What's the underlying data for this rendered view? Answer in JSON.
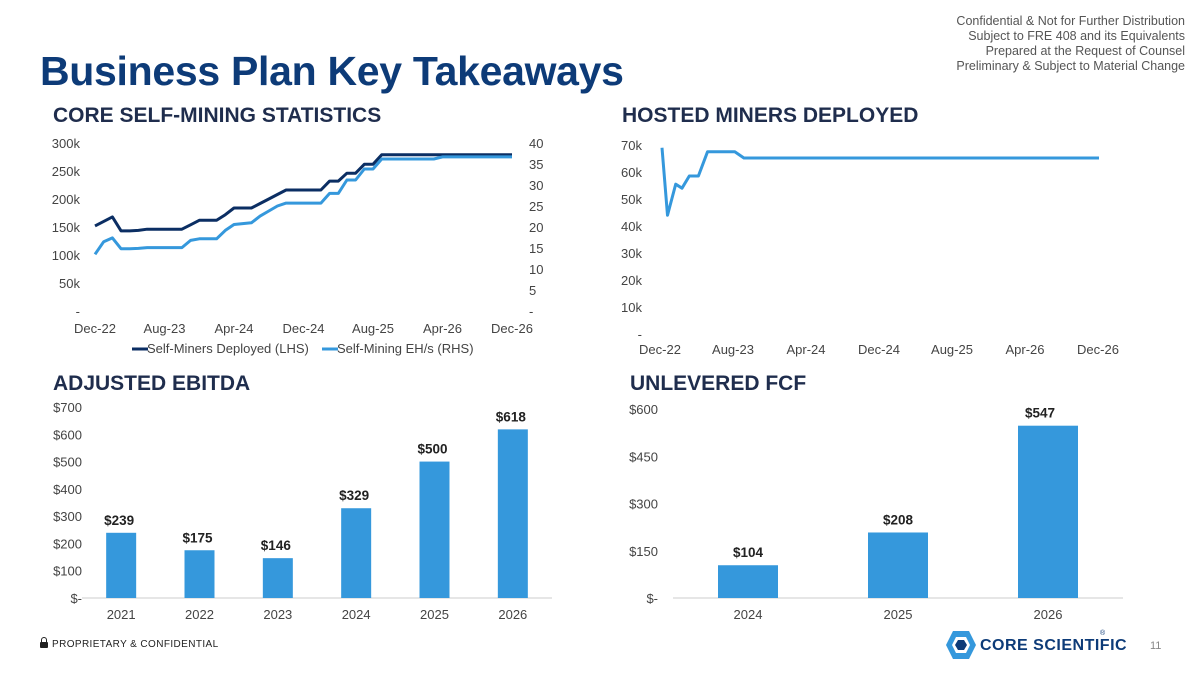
{
  "disclaimer": {
    "line1": "Confidential & Not for Further Distribution",
    "line2": "Subject to FRE 408 and its Equivalents",
    "line3": "Prepared at the Request of Counsel",
    "line4": "Preliminary & Subject to Material Change"
  },
  "page_title": "Business Plan Key Takeaways",
  "footer": {
    "confidential": "PROPRIETARY & CONFIDENTIAL",
    "page_number": "11",
    "logo_text": "CORE SCIENTIFIC",
    "logo_mark": "®"
  },
  "colors": {
    "navy": "#0d3b78",
    "light_blue": "#3598dc",
    "dark_line": "#0b2e63"
  },
  "chart_data": [
    {
      "id": "self_mining",
      "type": "line",
      "title": "CORE SELF-MINING STATISTICS",
      "x_tick_labels": [
        "Dec-22",
        "Aug-23",
        "Apr-24",
        "Dec-24",
        "Aug-25",
        "Apr-26",
        "Dec-26"
      ],
      "x_range": [
        0,
        48
      ],
      "y_left_range": [
        0,
        300000
      ],
      "y_left_tick_labels": [
        "-",
        "50k",
        "100k",
        "150k",
        "200k",
        "250k",
        "300k"
      ],
      "y_right_range": [
        0,
        40
      ],
      "y_right_tick_labels": [
        "-",
        "5",
        "10",
        "15",
        "20",
        "25",
        "30",
        "35",
        "40"
      ],
      "series": [
        {
          "name": "Self-Miners Deployed (LHS)",
          "axis": "left",
          "color": "#0b2e63",
          "x": [
            0,
            1,
            2,
            3,
            4,
            5,
            6,
            7,
            8,
            9,
            10,
            11,
            12,
            13,
            14,
            15,
            16,
            17,
            18,
            19,
            20,
            21,
            22,
            23,
            24,
            25,
            26,
            27,
            28,
            29,
            30,
            31,
            32,
            33,
            48
          ],
          "y": [
            152000,
            160000,
            168000,
            143000,
            143000,
            144000,
            146000,
            146000,
            146000,
            146000,
            146000,
            154000,
            162000,
            162000,
            162000,
            172000,
            184000,
            184000,
            184000,
            192000,
            200000,
            208000,
            216000,
            216000,
            216000,
            216000,
            216000,
            232000,
            232000,
            246000,
            246000,
            262000,
            262000,
            279000,
            279000
          ]
        },
        {
          "name": "Self-Mining EH/s (RHS)",
          "axis": "right",
          "color": "#3598dc",
          "x": [
            0,
            1,
            2,
            3,
            4,
            5,
            6,
            7,
            8,
            9,
            10,
            11,
            12,
            13,
            14,
            15,
            16,
            17,
            18,
            19,
            20,
            21,
            22,
            23,
            24,
            25,
            26,
            27,
            28,
            29,
            30,
            31,
            32,
            33,
            34,
            35,
            36,
            37,
            38,
            39,
            40,
            48
          ],
          "y": [
            13.5,
            16.5,
            17.4,
            14.8,
            14.8,
            14.9,
            15.1,
            15.1,
            15.1,
            15.1,
            15.1,
            16.8,
            17.2,
            17.2,
            17.2,
            19.2,
            20.6,
            20.8,
            21.0,
            22.6,
            23.8,
            25.0,
            25.7,
            25.7,
            25.7,
            25.7,
            25.7,
            28.0,
            28.0,
            31.2,
            31.2,
            33.8,
            33.8,
            36.2,
            36.2,
            36.2,
            36.2,
            36.2,
            36.2,
            36.2,
            36.7,
            36.7
          ]
        }
      ],
      "legend": "bottom"
    },
    {
      "id": "hosted_miners",
      "type": "line",
      "title": "HOSTED MINERS DEPLOYED",
      "x_tick_labels": [
        "Dec-22",
        "Aug-23",
        "Apr-24",
        "Dec-24",
        "Aug-25",
        "Apr-26",
        "Dec-26"
      ],
      "x_range": [
        0,
        48
      ],
      "y_range": [
        0,
        70000
      ],
      "y_tick_labels": [
        "-",
        "10k",
        "20k",
        "30k",
        "40k",
        "50k",
        "60k",
        "70k"
      ],
      "series": [
        {
          "name": "Hosted Miners",
          "color": "#3598dc",
          "x": [
            0,
            0.6,
            1.5,
            2.2,
            3.0,
            4.0,
            5.0,
            8.0,
            9.0,
            48
          ],
          "y": [
            69000,
            44000,
            55500,
            54000,
            58500,
            58500,
            67500,
            67500,
            65200,
            65200
          ]
        }
      ]
    },
    {
      "id": "adjusted_ebitda",
      "type": "bar",
      "title": "ADJUSTED EBITDA",
      "categories": [
        "2021",
        "2022",
        "2023",
        "2024",
        "2025",
        "2026"
      ],
      "values": [
        239,
        175,
        146,
        329,
        500,
        618
      ],
      "value_labels": [
        "$239",
        "$175",
        "$146",
        "$329",
        "$500",
        "$618"
      ],
      "y_range": [
        0,
        700
      ],
      "y_tick_labels": [
        "$-",
        "$100",
        "$200",
        "$300",
        "$400",
        "$500",
        "$600",
        "$700"
      ],
      "color": "#3598dc"
    },
    {
      "id": "unlevered_fcf",
      "type": "bar",
      "title": "UNLEVERED FCF",
      "categories": [
        "2024",
        "2025",
        "2026"
      ],
      "values": [
        104,
        208,
        547
      ],
      "value_labels": [
        "$104",
        "$208",
        "$547"
      ],
      "y_range": [
        0,
        600
      ],
      "y_tick_labels": [
        "$-",
        "$150",
        "$300",
        "$450",
        "$600"
      ],
      "color": "#3598dc"
    }
  ]
}
